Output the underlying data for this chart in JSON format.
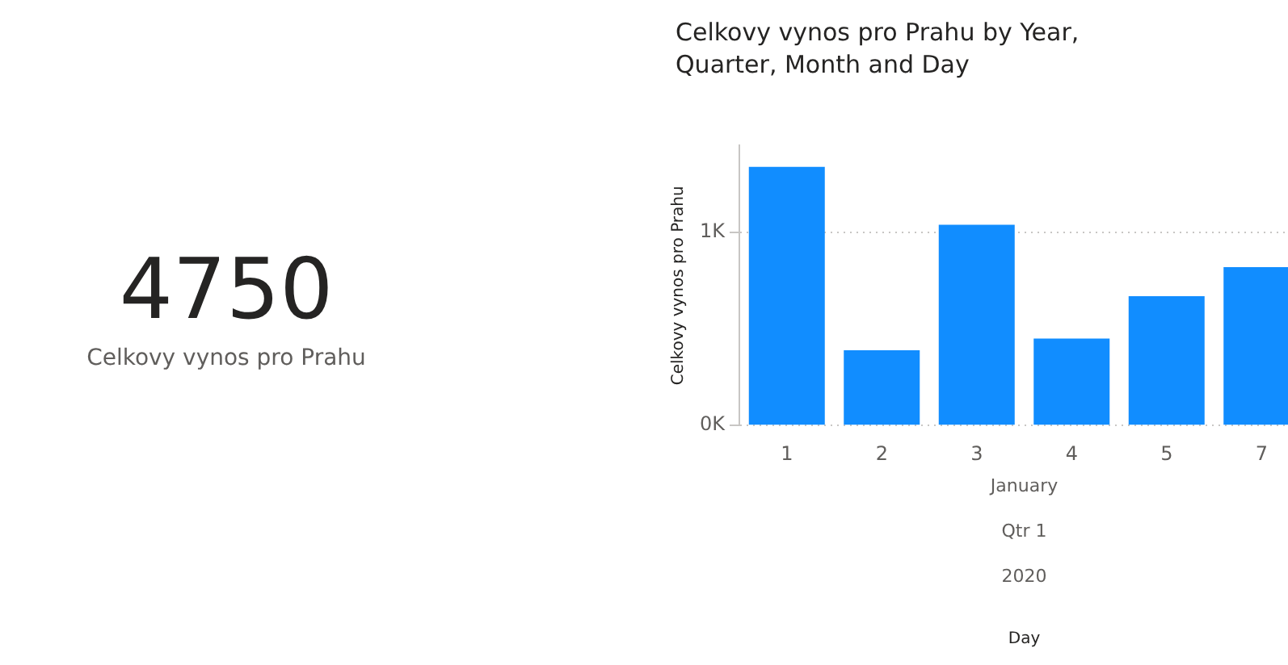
{
  "chart_data": [
    {
      "type": "other",
      "title": "4750",
      "subtitle": "Celkovy vynos pro Prahu"
    },
    {
      "type": "bar",
      "title": "Celkovy vynos pro Prahu by Year, Quarter, Month and Day",
      "xlabel": "Day",
      "ylabel": "Celkovy vynos pro Prahu",
      "categories": [
        "1",
        "2",
        "3",
        "4",
        "5",
        "7"
      ],
      "values": [
        1340,
        390,
        1040,
        450,
        670,
        820
      ],
      "color": "#118dff",
      "ylim": [
        0,
        1450
      ],
      "yticks": [
        {
          "value": 0,
          "label": "0K"
        },
        {
          "value": 1000,
          "label": "1K"
        }
      ],
      "grid": "y",
      "legend": false,
      "annotations": [
        "January",
        "Qtr 1",
        "2020"
      ]
    }
  ]
}
